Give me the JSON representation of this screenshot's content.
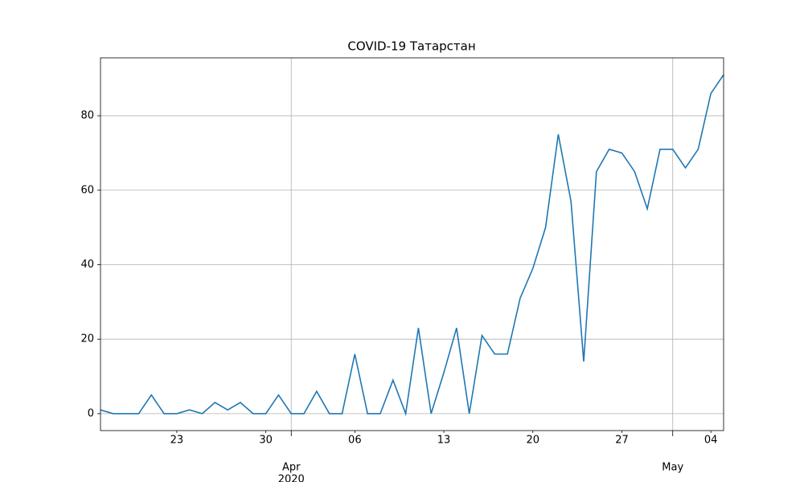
{
  "chart_data": {
    "type": "line",
    "title": "COVID-19 Татарстан",
    "x": [
      "2020-03-17",
      "2020-03-18",
      "2020-03-19",
      "2020-03-20",
      "2020-03-21",
      "2020-03-22",
      "2020-03-23",
      "2020-03-24",
      "2020-03-25",
      "2020-03-26",
      "2020-03-27",
      "2020-03-28",
      "2020-03-29",
      "2020-03-30",
      "2020-03-31",
      "2020-04-01",
      "2020-04-02",
      "2020-04-03",
      "2020-04-04",
      "2020-04-05",
      "2020-04-06",
      "2020-04-07",
      "2020-04-08",
      "2020-04-09",
      "2020-04-10",
      "2020-04-11",
      "2020-04-12",
      "2020-04-13",
      "2020-04-14",
      "2020-04-15",
      "2020-04-16",
      "2020-04-17",
      "2020-04-18",
      "2020-04-19",
      "2020-04-20",
      "2020-04-21",
      "2020-04-22",
      "2020-04-23",
      "2020-04-24",
      "2020-04-25",
      "2020-04-26",
      "2020-04-27",
      "2020-04-28",
      "2020-04-29",
      "2020-04-30",
      "2020-05-01",
      "2020-05-02",
      "2020-05-03",
      "2020-05-04",
      "2020-05-05"
    ],
    "series": [
      {
        "color": "#1f77b4",
        "values": [
          1,
          0,
          0,
          0,
          5,
          0,
          0,
          1,
          0,
          3,
          1,
          3,
          0,
          0,
          5,
          0,
          0,
          6,
          0,
          0,
          16,
          0,
          0,
          9,
          0,
          23,
          0,
          11,
          23,
          0,
          21,
          16,
          16,
          31,
          39,
          50,
          75,
          57,
          14,
          65,
          71,
          70,
          65,
          55,
          71,
          71,
          66,
          71,
          86,
          91
        ]
      }
    ],
    "xlim": [
      "2020-03-17",
      "2020-05-05"
    ],
    "xticks": [
      {
        "value": "2020-03-23",
        "label": "23"
      },
      {
        "value": "2020-03-30",
        "label": "30"
      },
      {
        "value": "2020-04-06",
        "label": "06"
      },
      {
        "value": "2020-04-13",
        "label": "13"
      },
      {
        "value": "2020-04-20",
        "label": "20"
      },
      {
        "value": "2020-04-27",
        "label": "27"
      },
      {
        "value": "2020-05-04",
        "label": "04"
      }
    ],
    "x_major_ticks": [
      {
        "value": "2020-04-01",
        "label": "Apr"
      },
      {
        "value": "2020-05-01",
        "label": "May"
      }
    ],
    "x_year_label": "2020",
    "ylim": [
      -4.55,
      95.55
    ],
    "yticks": [
      0,
      20,
      40,
      60,
      80
    ],
    "grid": true
  }
}
